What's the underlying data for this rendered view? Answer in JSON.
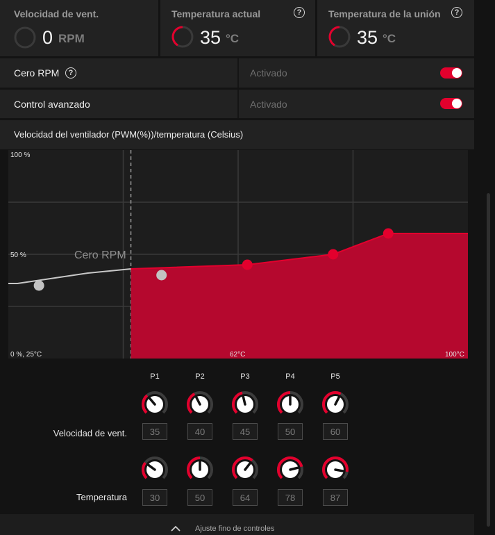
{
  "stats": {
    "fan_speed": {
      "title": "Velocidad de vent.",
      "value": "0",
      "unit": "RPM"
    },
    "current_temp": {
      "title": "Temperatura actual",
      "value": "35",
      "unit": "°C"
    },
    "junction_temp": {
      "title": "Temperatura de la unión",
      "value": "35",
      "unit": "°C"
    }
  },
  "settings": {
    "zero_rpm": {
      "label": "Cero RPM",
      "value": "Activado",
      "enabled": true
    },
    "advanced_control": {
      "label": "Control avanzado",
      "value": "Activado",
      "enabled": true
    }
  },
  "curve": {
    "title": "Velocidad del ventilador (PWM(%))/temperatura (Celsius)",
    "zero_rpm_label": "Cero RPM",
    "y_top_label": "100 %",
    "y_mid_label": "50 %",
    "y_bottom_label": "0 %, 25°C",
    "x_mid_label": "62°C",
    "x_end_label": "100°C"
  },
  "chart_data": {
    "type": "area",
    "x_unit": "°C",
    "y_unit": "%",
    "xlim": [
      25,
      100
    ],
    "ylim": [
      0,
      100
    ],
    "zero_rpm_region": {
      "x": [
        26.5,
        38,
        45
      ],
      "y": [
        36,
        41,
        43
      ]
    },
    "points": [
      {
        "name": "P1",
        "temp": 30,
        "speed": 35
      },
      {
        "name": "P2",
        "temp": 50,
        "speed": 40
      },
      {
        "name": "P3",
        "temp": 64,
        "speed": 45
      },
      {
        "name": "P4",
        "temp": 78,
        "speed": 50
      },
      {
        "name": "P5",
        "temp": 87,
        "speed": 60
      }
    ],
    "grid": true
  },
  "controls": {
    "point_labels": [
      "P1",
      "P2",
      "P3",
      "P4",
      "P5"
    ],
    "speed_label": "Velocidad de vent.",
    "temp_label": "Temperatura",
    "speed_values": [
      "35",
      "40",
      "45",
      "50",
      "60"
    ],
    "temp_values": [
      "30",
      "50",
      "64",
      "78",
      "87"
    ],
    "speed_fraction": [
      0.35,
      0.4,
      0.45,
      0.5,
      0.6
    ],
    "temp_fraction": [
      0.3,
      0.5,
      0.64,
      0.78,
      0.87
    ]
  },
  "footer": {
    "label": "Ajuste fino de controles"
  },
  "colors": {
    "accent": "#e3002d",
    "fill": "#b5082e",
    "panel": "#222222",
    "background": "#131313"
  },
  "icons": {
    "help": "question-circle-icon",
    "collapse": "chevron-up-icon"
  }
}
